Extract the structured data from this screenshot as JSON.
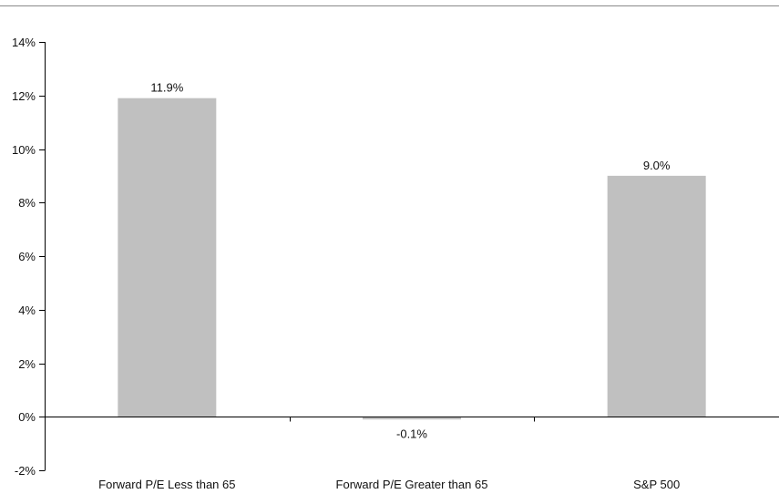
{
  "chart_data": {
    "type": "bar",
    "categories": [
      "Forward P/E Less than 65",
      "Forward P/E Greater than 65",
      "S&P 500"
    ],
    "values": [
      11.9,
      -0.1,
      9.0
    ],
    "data_labels": [
      "11.9%",
      "-0.1%",
      "9.0%"
    ],
    "ylim": [
      -2,
      14
    ],
    "yticks": [
      -2,
      0,
      2,
      4,
      6,
      8,
      10,
      12,
      14
    ],
    "ytick_labels": [
      "-2%",
      "0%",
      "2%",
      "4%",
      "6%",
      "8%",
      "10%",
      "12%",
      "14%"
    ],
    "bar_color": "#c0c0c0",
    "axis_color": "#000000",
    "rule_color": "#8a8a8a",
    "grid": false,
    "legend": "none"
  }
}
